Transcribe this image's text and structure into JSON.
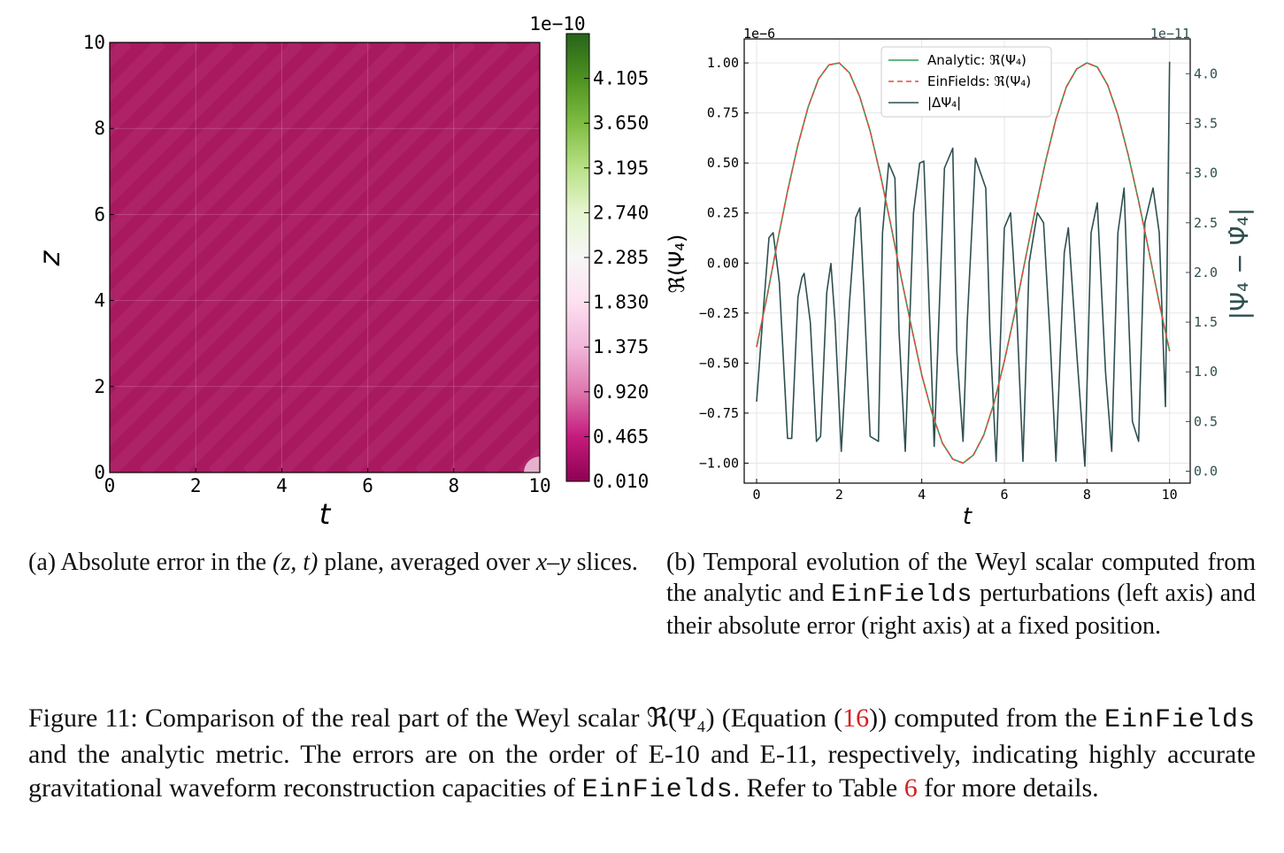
{
  "figure_a": {
    "chart_data": {
      "type": "heatmap",
      "title": "",
      "xlabel": "t",
      "ylabel": "z",
      "xlim": [
        0,
        10
      ],
      "ylim": [
        0,
        10
      ],
      "xticks": [
        "0",
        "2",
        "4",
        "6",
        "8",
        "10"
      ],
      "yticks": [
        "0",
        "2",
        "4",
        "6",
        "8",
        "10"
      ],
      "colorbar": {
        "offset_label": "1e−10",
        "min": 0.01,
        "max": 4.56,
        "tick_labels": [
          "4.105",
          "3.650",
          "3.195",
          "2.740",
          "2.285",
          "1.830",
          "1.375",
          "0.920",
          "0.465",
          "0.010"
        ],
        "tick_values": [
          4.105,
          3.65,
          3.195,
          2.74,
          2.285,
          1.83,
          1.375,
          0.92,
          0.465,
          0.01
        ],
        "colormap": [
          "#276419",
          "#4d9221",
          "#7fbc41",
          "#b8e186",
          "#e6f5d0",
          "#f7f7f7",
          "#fde0ef",
          "#f1b6da",
          "#de77ae",
          "#c51b7d",
          "#8e0152"
        ]
      },
      "field_description": "uniform low error (~0.1e-10) with diagonal stripes of constant t - z",
      "stripe_value_range": [
        0.05,
        0.2
      ],
      "stripe_period_t": 0.8,
      "corner_highlight": {
        "t": 10,
        "z": 0,
        "value": 1.2
      }
    }
  },
  "figure_b": {
    "chart_data": {
      "type": "line",
      "xlabel": "t",
      "ylabel_left": "ℜ(Ψ₄)",
      "ylabel_right": "|Ψ₄ − Ψ̂₄|",
      "left_offset": "1e−6",
      "right_offset": "1e−11",
      "xlim": [
        -0.3,
        10.5
      ],
      "ylim_left": [
        -1.1,
        1.12
      ],
      "ylim_right": [
        -0.12,
        4.35
      ],
      "xticks": [
        "0",
        "2",
        "4",
        "6",
        "8",
        "10"
      ],
      "yticks_left": [
        "1.00",
        "0.75",
        "0.50",
        "0.25",
        "0.00",
        "−0.25",
        "−0.50",
        "−0.75",
        "−1.00"
      ],
      "ytick_values_left": [
        1.0,
        0.75,
        0.5,
        0.25,
        0.0,
        -0.25,
        -0.5,
        -0.75,
        -1.0
      ],
      "yticks_right": [
        "4.0",
        "3.5",
        "3.0",
        "2.5",
        "2.0",
        "1.5",
        "1.0",
        "0.5",
        "0.0"
      ],
      "ytick_values_right": [
        4.0,
        3.5,
        3.0,
        2.5,
        2.0,
        1.5,
        1.0,
        0.5,
        0.0
      ],
      "legend_position": "top-center",
      "legend": [
        "Analytic: ℜ(Ψ₄)",
        "EinFields: ℜ(Ψ₄)",
        "|ΔΨ₄|"
      ],
      "series": [
        {
          "name": "Analytic: ℜ(Ψ₄)",
          "axis": "left",
          "color": "#2e9e5e",
          "x": [
            0,
            0.25,
            0.5,
            0.75,
            1,
            1.25,
            1.5,
            1.75,
            2,
            2.25,
            2.5,
            2.75,
            3,
            3.25,
            3.5,
            3.75,
            4,
            4.25,
            4.5,
            4.75,
            5,
            5.25,
            5.5,
            5.75,
            6,
            6.25,
            6.5,
            6.75,
            7,
            7.25,
            7.5,
            7.75,
            8,
            8.25,
            8.5,
            8.75,
            9,
            9.25,
            9.5,
            9.75,
            10
          ],
          "y": [
            -0.42,
            -0.17,
            0.1,
            0.36,
            0.59,
            0.78,
            0.92,
            0.99,
            1.0,
            0.95,
            0.83,
            0.66,
            0.44,
            0.19,
            -0.07,
            -0.32,
            -0.56,
            -0.75,
            -0.9,
            -0.98,
            -1.0,
            -0.96,
            -0.86,
            -0.7,
            -0.49,
            -0.25,
            0.01,
            0.27,
            0.51,
            0.72,
            0.88,
            0.97,
            1.0,
            0.98,
            0.89,
            0.74,
            0.54,
            0.31,
            0.06,
            -0.2,
            -0.44
          ]
        },
        {
          "name": "EinFields: ℜ(Ψ₄)",
          "axis": "left",
          "color": "#e8493b",
          "dashed": true,
          "x": [
            0,
            0.25,
            0.5,
            0.75,
            1,
            1.25,
            1.5,
            1.75,
            2,
            2.25,
            2.5,
            2.75,
            3,
            3.25,
            3.5,
            3.75,
            4,
            4.25,
            4.5,
            4.75,
            5,
            5.25,
            5.5,
            5.75,
            6,
            6.25,
            6.5,
            6.75,
            7,
            7.25,
            7.5,
            7.75,
            8,
            8.25,
            8.5,
            8.75,
            9,
            9.25,
            9.5,
            9.75,
            10
          ],
          "y": [
            -0.42,
            -0.17,
            0.1,
            0.36,
            0.59,
            0.78,
            0.92,
            0.99,
            1.0,
            0.95,
            0.83,
            0.66,
            0.44,
            0.19,
            -0.07,
            -0.32,
            -0.56,
            -0.75,
            -0.9,
            -0.98,
            -1.0,
            -0.96,
            -0.86,
            -0.7,
            -0.49,
            -0.25,
            0.01,
            0.27,
            0.51,
            0.72,
            0.88,
            0.97,
            1.0,
            0.98,
            0.89,
            0.74,
            0.54,
            0.31,
            0.06,
            -0.2,
            -0.44
          ]
        },
        {
          "name": "|ΔΨ₄|",
          "axis": "right",
          "color": "#2f4f4f",
          "x": [
            0,
            0.15,
            0.3,
            0.4,
            0.55,
            0.75,
            0.85,
            1.0,
            1.1,
            1.15,
            1.3,
            1.45,
            1.55,
            1.7,
            1.8,
            1.9,
            2.05,
            2.25,
            2.4,
            2.5,
            2.6,
            2.75,
            2.95,
            3.05,
            3.2,
            3.35,
            3.45,
            3.6,
            3.8,
            3.95,
            4.05,
            4.15,
            4.3,
            4.55,
            4.75,
            4.85,
            5.0,
            5.1,
            5.3,
            5.55,
            5.65,
            5.8,
            6.0,
            6.15,
            6.3,
            6.45,
            6.6,
            6.8,
            6.95,
            7.1,
            7.25,
            7.45,
            7.55,
            7.75,
            7.95,
            8.1,
            8.25,
            8.45,
            8.6,
            8.75,
            8.9,
            9.1,
            9.25,
            9.4,
            9.6,
            9.75,
            9.9,
            10.0
          ],
          "y": [
            0.7,
            1.55,
            2.35,
            2.4,
            1.9,
            0.33,
            0.33,
            1.75,
            1.95,
            1.99,
            1.5,
            0.3,
            0.35,
            1.8,
            2.09,
            1.5,
            0.2,
            1.7,
            2.55,
            2.65,
            1.8,
            0.35,
            0.3,
            2.4,
            3.1,
            2.95,
            1.4,
            0.2,
            2.6,
            3.1,
            3.12,
            2.0,
            0.25,
            3.05,
            3.25,
            1.2,
            0.3,
            1.5,
            3.15,
            2.85,
            1.4,
            0.1,
            2.45,
            2.6,
            1.6,
            0.1,
            2.1,
            2.6,
            2.5,
            1.4,
            0.1,
            2.2,
            2.45,
            1.2,
            0.05,
            2.4,
            2.7,
            1.0,
            0.2,
            2.4,
            2.85,
            0.5,
            0.3,
            2.5,
            2.85,
            2.4,
            0.65,
            4.12
          ]
        }
      ]
    }
  },
  "captions": {
    "a_prefix": "(a) Absolute error in the ",
    "a_math1": "(z, t)",
    "a_mid": " plane, averaged over ",
    "a_math2": "x–y",
    "a_suffix": " slices.",
    "b_text1": "(b) Temporal evolution of the Weyl scalar computed from the analytic and ",
    "b_mono": "EinFields",
    "b_text2": " perturbations (left axis) and their absolute error (right axis) at a fixed position.",
    "main_1": "Figure 11: Comparison of the real part of the Weyl scalar ",
    "main_math": "ℜ(Ψ₄)",
    "main_2": " (Equation (",
    "main_eqref": "16",
    "main_3": ")) computed from the ",
    "main_mono1": "EinFields",
    "main_4": " and the analytic metric. The errors are on the order of E-10 and E-11, respectively, indicating highly accurate gravitational waveform reconstruction capacities of ",
    "main_mono2": "EinFields",
    "main_5": ". Refer to Table ",
    "main_tabref": "6",
    "main_6": " for more details."
  }
}
